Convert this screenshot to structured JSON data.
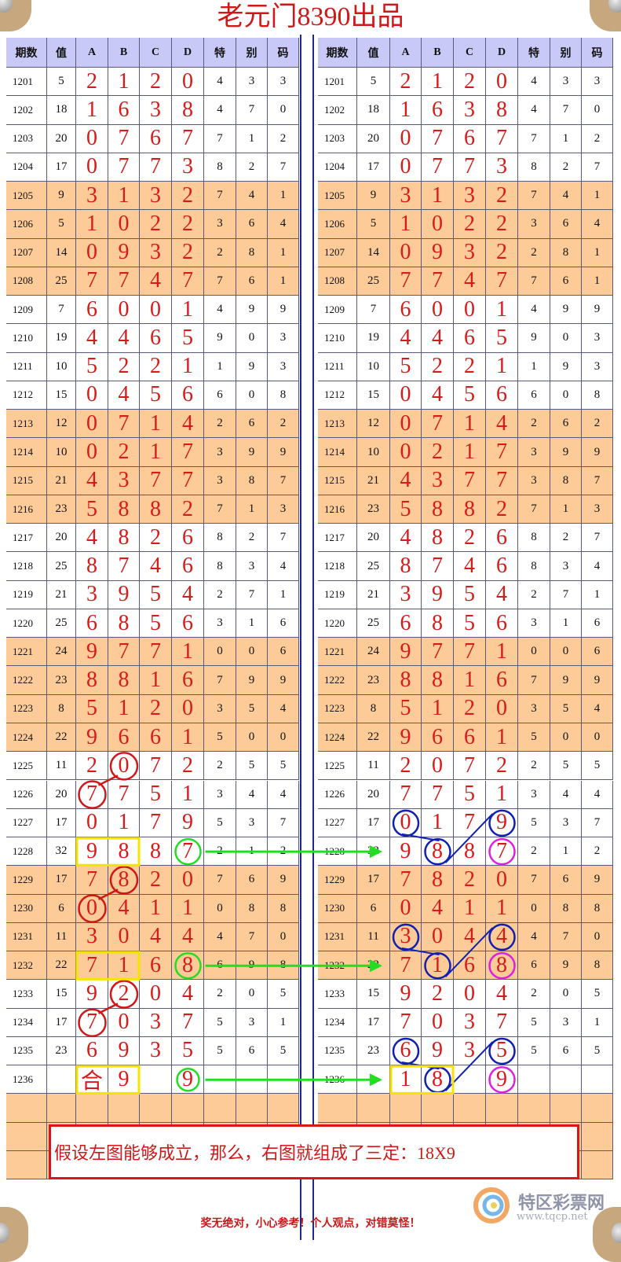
{
  "title": "老元门8390出品",
  "headers": [
    "期数",
    "值",
    "A",
    "B",
    "C",
    "D",
    "特",
    "别",
    "码"
  ],
  "orange_rows": [
    "1205",
    "1206",
    "1207",
    "1208",
    "1213",
    "1214",
    "1215",
    "1216",
    "1221",
    "1222",
    "1223",
    "1224",
    "1229",
    "1230",
    "1231",
    "1232"
  ],
  "rows": [
    [
      "1201",
      "5",
      "2",
      "1",
      "2",
      "0",
      "4",
      "3",
      "3"
    ],
    [
      "1202",
      "18",
      "1",
      "6",
      "3",
      "8",
      "4",
      "7",
      "0"
    ],
    [
      "1203",
      "20",
      "0",
      "7",
      "6",
      "7",
      "7",
      "1",
      "2"
    ],
    [
      "1204",
      "17",
      "0",
      "7",
      "7",
      "3",
      "8",
      "2",
      "7"
    ],
    [
      "1205",
      "9",
      "3",
      "1",
      "3",
      "2",
      "7",
      "4",
      "1"
    ],
    [
      "1206",
      "5",
      "1",
      "0",
      "2",
      "2",
      "3",
      "6",
      "4"
    ],
    [
      "1207",
      "14",
      "0",
      "9",
      "3",
      "2",
      "2",
      "8",
      "1"
    ],
    [
      "1208",
      "25",
      "7",
      "7",
      "4",
      "7",
      "7",
      "6",
      "1"
    ],
    [
      "1209",
      "7",
      "6",
      "0",
      "0",
      "1",
      "4",
      "9",
      "9"
    ],
    [
      "1210",
      "19",
      "4",
      "4",
      "6",
      "5",
      "9",
      "0",
      "3"
    ],
    [
      "1211",
      "10",
      "5",
      "2",
      "2",
      "1",
      "1",
      "9",
      "3"
    ],
    [
      "1212",
      "15",
      "0",
      "4",
      "5",
      "6",
      "6",
      "0",
      "8"
    ],
    [
      "1213",
      "12",
      "0",
      "7",
      "1",
      "4",
      "2",
      "6",
      "2"
    ],
    [
      "1214",
      "10",
      "0",
      "2",
      "1",
      "7",
      "3",
      "9",
      "9"
    ],
    [
      "1215",
      "21",
      "4",
      "3",
      "7",
      "7",
      "3",
      "8",
      "7"
    ],
    [
      "1216",
      "23",
      "5",
      "8",
      "8",
      "2",
      "7",
      "1",
      "3"
    ],
    [
      "1217",
      "20",
      "4",
      "8",
      "2",
      "6",
      "8",
      "2",
      "7"
    ],
    [
      "1218",
      "25",
      "8",
      "7",
      "4",
      "6",
      "8",
      "3",
      "4"
    ],
    [
      "1219",
      "21",
      "3",
      "9",
      "5",
      "4",
      "2",
      "7",
      "1"
    ],
    [
      "1220",
      "25",
      "6",
      "8",
      "5",
      "6",
      "3",
      "1",
      "6"
    ],
    [
      "1221",
      "24",
      "9",
      "7",
      "7",
      "1",
      "0",
      "0",
      "6"
    ],
    [
      "1222",
      "23",
      "8",
      "8",
      "1",
      "6",
      "7",
      "9",
      "9"
    ],
    [
      "1223",
      "8",
      "5",
      "1",
      "2",
      "0",
      "3",
      "5",
      "4"
    ],
    [
      "1224",
      "22",
      "9",
      "6",
      "6",
      "1",
      "5",
      "0",
      "0"
    ],
    [
      "1225",
      "11",
      "2",
      "0",
      "7",
      "2",
      "2",
      "5",
      "5"
    ],
    [
      "1226",
      "20",
      "7",
      "7",
      "5",
      "1",
      "3",
      "4",
      "4"
    ],
    [
      "1227",
      "17",
      "0",
      "1",
      "7",
      "9",
      "5",
      "3",
      "7"
    ],
    [
      "1228",
      "32",
      "9",
      "8",
      "8",
      "7",
      "2",
      "1",
      "2"
    ],
    [
      "1229",
      "17",
      "7",
      "8",
      "2",
      "0",
      "7",
      "6",
      "9"
    ],
    [
      "1230",
      "6",
      "0",
      "4",
      "1",
      "1",
      "0",
      "8",
      "8"
    ],
    [
      "1231",
      "11",
      "3",
      "0",
      "4",
      "4",
      "4",
      "7",
      "0"
    ],
    [
      "1232",
      "22",
      "7",
      "1",
      "6",
      "8",
      "6",
      "9",
      "8"
    ],
    [
      "1233",
      "15",
      "9",
      "2",
      "0",
      "4",
      "2",
      "0",
      "5"
    ],
    [
      "1234",
      "17",
      "7",
      "0",
      "3",
      "7",
      "5",
      "3",
      "1"
    ],
    [
      "1235",
      "23",
      "6",
      "9",
      "3",
      "5",
      "5",
      "6",
      "5"
    ]
  ],
  "left_last_row": [
    "1236",
    "",
    "合",
    "9",
    "",
    "9",
    "",
    "",
    ""
  ],
  "right_last_row": [
    "1236",
    "",
    "1",
    "8",
    "",
    "9",
    "",
    "",
    ""
  ],
  "notice": "假设左图能够成立，那么，右图就组成了三定：18X9",
  "footer": "奖无绝对，小心参考！个人观点，对错莫怪！",
  "watermark": {
    "name": "特区彩票网",
    "url": "www.tqcp.net"
  },
  "colors": {
    "digit_red": "#d41c1c",
    "orange_band": "#fccb97",
    "header_lavender": "#c9c9f7",
    "circle_red": "#d01818",
    "circle_green": "#22dd22",
    "circle_blue": "#1020b0",
    "circle_magenta": "#e020e0",
    "box_yellow": "#f5e400"
  }
}
